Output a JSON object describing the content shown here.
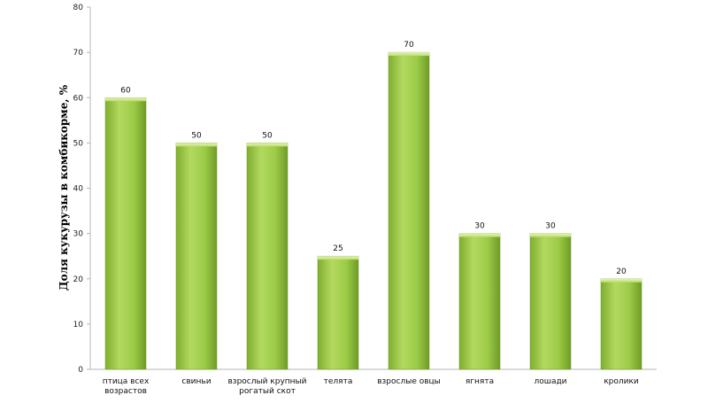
{
  "chart_data": {
    "type": "bar",
    "ylabel": "Доля кукурузы в комбикорме, %",
    "ylim": [
      0,
      80
    ],
    "yticks": [
      0,
      10,
      20,
      30,
      40,
      50,
      60,
      70,
      80
    ],
    "grid": false,
    "categories": [
      [
        "птица всех",
        "возрастов"
      ],
      [
        "свиньи"
      ],
      [
        "взрослый крупный",
        "рогатый скот"
      ],
      [
        "телята"
      ],
      [
        "взрослые овцы"
      ],
      [
        "ягнята"
      ],
      [
        "лошади"
      ],
      [
        "кролики"
      ]
    ],
    "values": [
      60,
      50,
      50,
      25,
      70,
      30,
      30,
      20
    ],
    "bar_color": "#9cc94a"
  }
}
